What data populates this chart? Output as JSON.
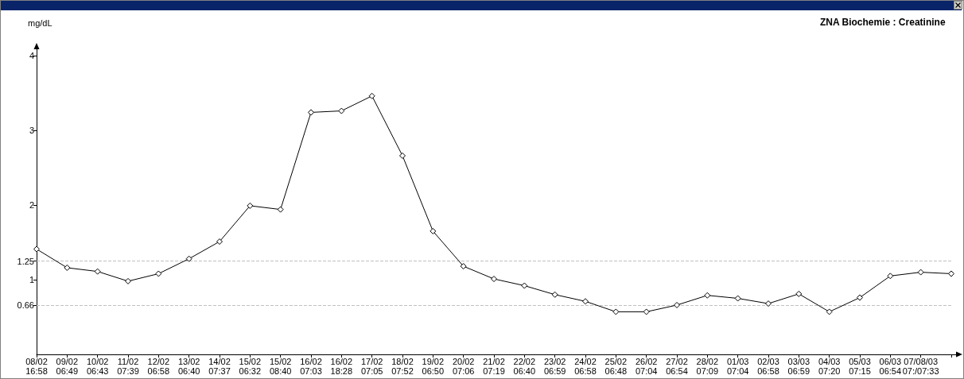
{
  "chart_data": {
    "type": "line",
    "title": "ZNA Biochemie : Creatinine",
    "ylabel": "mg/dL",
    "categories": [
      "08/02\n16:58",
      "09/02\n06:49",
      "10/02\n06:43",
      "11/02\n07:39",
      "12/02\n06:58",
      "13/02\n06:40",
      "14/02\n07:37",
      "15/02\n06:32",
      "15/02\n08:40",
      "16/02\n07:03",
      "16/02\n18:28",
      "17/02\n07:05",
      "18/02\n07:52",
      "19/02\n06:50",
      "20/02\n07:06",
      "21/02\n07:19",
      "22/02\n06:40",
      "23/02\n06:59",
      "24/02\n06:58",
      "25/02\n06:48",
      "26/02\n07:04",
      "27/02\n06:54",
      "28/02\n07:09",
      "01/03\n07:04",
      "02/03\n06:58",
      "03/03\n06:59",
      "04/03\n07:20",
      "05/03\n07:15",
      "06/03\n06:54",
      "07/08/03\n07:/07:33",
      null
    ],
    "series": [
      {
        "color": "#000000",
        "values": [
          1.41,
          1.16,
          1.11,
          0.98,
          1.08,
          1.28,
          1.51,
          1.99,
          1.94,
          3.24,
          3.26,
          3.46,
          2.66,
          1.65,
          1.18,
          1.01,
          0.92,
          0.8,
          0.71,
          0.57,
          0.57,
          0.66,
          0.79,
          0.75,
          0.68,
          0.81,
          0.57,
          0.76,
          1.05,
          1.1,
          1.08
        ]
      }
    ],
    "ylim": [
      0,
      4
    ],
    "yticks": [
      0.66,
      1,
      1.25,
      2,
      3,
      4
    ],
    "ref_lines": [
      {
        "axis": "y",
        "value": 1.25,
        "color": "#c0c0c0",
        "line_style": "dashed"
      },
      {
        "axis": "y",
        "value": 0.66,
        "color": "#c0c0c0",
        "line_style": "dashed"
      }
    ],
    "marker": "diamond",
    "line_style": "solid",
    "grid": false
  }
}
